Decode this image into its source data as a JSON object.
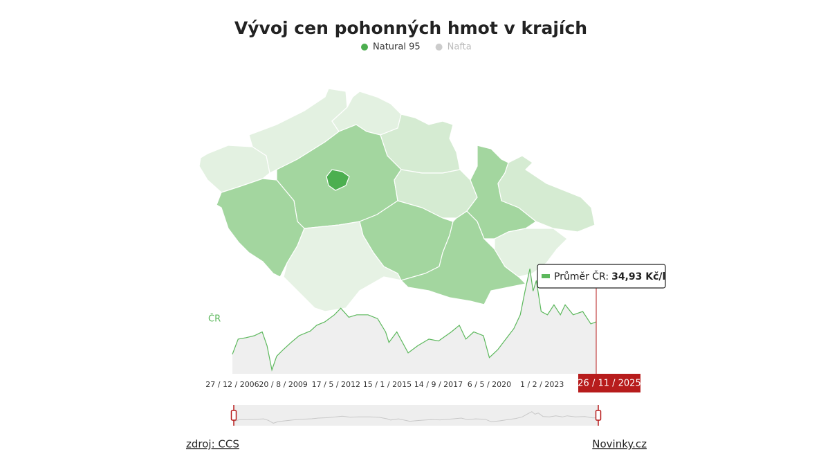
{
  "title": "Vývoj cen pohonných hmot v krajích",
  "legend": [
    {
      "name": "Natural 95",
      "color": "#4cae4f",
      "active": true
    },
    {
      "name": "Nafta",
      "color": "#cccccc",
      "active": false
    }
  ],
  "footer": {
    "source": "zdroj: CCS",
    "brand": "Novinky.cz"
  },
  "chart_data": {
    "type": "line",
    "x": [
      "2006-12-27",
      "2007-04-15",
      "2007-09-15",
      "2008-02-15",
      "2008-07-15",
      "2008-10-15",
      "2009-01-15",
      "2009-04-15",
      "2009-08-20",
      "2010-01-15",
      "2010-06-15",
      "2011-01-15",
      "2011-05-15",
      "2011-10-15",
      "2012-04-15",
      "2012-08-15",
      "2013-01-15",
      "2013-06-15",
      "2014-01-15",
      "2014-07-15",
      "2014-12-15",
      "2015-02-15",
      "2015-07-15",
      "2016-02-15",
      "2016-08-15",
      "2017-03-15",
      "2017-09-14",
      "2018-05-15",
      "2018-10-15",
      "2019-02-15",
      "2019-07-15",
      "2020-01-15",
      "2020-05-06",
      "2020-10-15",
      "2021-03-15",
      "2021-08-15",
      "2021-12-15",
      "2022-03-15",
      "2022-06-15",
      "2022-08-15",
      "2022-10-15",
      "2023-01-15",
      "2023-05-15",
      "2023-09-15",
      "2024-01-15",
      "2024-04-15",
      "2024-09-15",
      "2025-03-15",
      "2025-08-15",
      "2025-11-26"
    ],
    "series": [
      {
        "name": "ČR",
        "color": "#5cb85c",
        "values": [
          28.1,
          31.3,
          31.6,
          32.0,
          32.8,
          29.9,
          24.8,
          27.7,
          29.1,
          30.6,
          32.0,
          33.0,
          34.2,
          34.9,
          36.4,
          37.8,
          35.9,
          36.4,
          36.4,
          35.6,
          32.8,
          30.6,
          32.8,
          28.4,
          29.9,
          31.3,
          30.9,
          32.8,
          34.2,
          31.3,
          32.8,
          32.0,
          27.4,
          29.1,
          31.3,
          33.5,
          36.4,
          41.4,
          46.1,
          41.4,
          43.6,
          37.1,
          36.4,
          38.5,
          36.4,
          38.5,
          36.4,
          37.1,
          34.5,
          34.93
        ]
      }
    ],
    "xlim": [
      "2006-12-27",
      "2025-11-26"
    ],
    "xticks": [
      {
        "value": "2006-12-27",
        "label": "27 / 12 / 2006"
      },
      {
        "value": "2009-08-20",
        "label": "20 / 8 / 2009"
      },
      {
        "value": "2012-05-17",
        "label": "17 / 5 / 2012"
      },
      {
        "value": "2015-01-15",
        "label": "15 / 1 / 2015"
      },
      {
        "value": "2017-09-14",
        "label": "14 / 9 / 2017"
      },
      {
        "value": "2020-05-06",
        "label": "6 / 5 / 2020"
      },
      {
        "value": "2023-02-01",
        "label": "1 / 2 / 2023"
      }
    ],
    "ylim": [
      24,
      47
    ],
    "crosshair": {
      "value": "2025-11-26",
      "label": "26 / 11 / 2025"
    },
    "tooltip": {
      "label": "Průměr ČR:",
      "value_label": "34,93 Kč/l"
    }
  }
}
